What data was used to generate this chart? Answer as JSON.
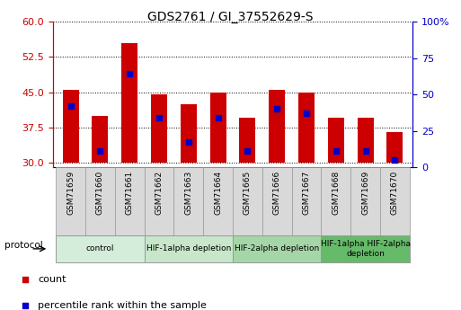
{
  "title": "GDS2761 / GI_37552629-S",
  "samples": [
    "GSM71659",
    "GSM71660",
    "GSM71661",
    "GSM71662",
    "GSM71663",
    "GSM71664",
    "GSM71665",
    "GSM71666",
    "GSM71667",
    "GSM71668",
    "GSM71669",
    "GSM71670"
  ],
  "bar_tops": [
    45.5,
    40.0,
    55.5,
    44.5,
    42.5,
    45.0,
    39.5,
    45.5,
    45.0,
    39.5,
    39.5,
    36.5
  ],
  "bar_bottoms": [
    30.0,
    30.0,
    30.0,
    30.0,
    30.0,
    30.0,
    30.0,
    30.0,
    30.0,
    30.0,
    30.0,
    30.0
  ],
  "blue_values": [
    42.0,
    32.5,
    49.0,
    39.5,
    34.5,
    39.5,
    32.5,
    41.5,
    40.5,
    32.5,
    32.5,
    30.5
  ],
  "ylim_left": [
    29.0,
    60.0
  ],
  "ylim_right": [
    0,
    100
  ],
  "yticks_left": [
    30,
    37.5,
    45,
    52.5,
    60
  ],
  "yticks_right": [
    0,
    25,
    50,
    75,
    100
  ],
  "bar_color": "#CC0000",
  "blue_color": "#0000CC",
  "bar_width": 0.55,
  "groups": [
    {
      "label": "control",
      "start": 0,
      "end": 2,
      "color": "#d4edda"
    },
    {
      "label": "HIF-1alpha depletion",
      "start": 3,
      "end": 5,
      "color": "#c8e6c9"
    },
    {
      "label": "HIF-2alpha depletion",
      "start": 6,
      "end": 8,
      "color": "#a5d6a7"
    },
    {
      "label": "HIF-1alpha HIF-2alpha\ndepletion",
      "start": 9,
      "end": 11,
      "color": "#66bb6a"
    }
  ],
  "legend_items": [
    {
      "label": "count",
      "color": "#CC0000"
    },
    {
      "label": "percentile rank within the sample",
      "color": "#0000CC"
    }
  ],
  "protocol_label": "protocol",
  "background_color": "#ffffff",
  "plot_bg": "#ffffff",
  "tick_color_left": "#CC0000",
  "tick_color_right": "#0000CC",
  "sample_box_color": "#d9d9d9",
  "sample_box_edge": "#999999"
}
